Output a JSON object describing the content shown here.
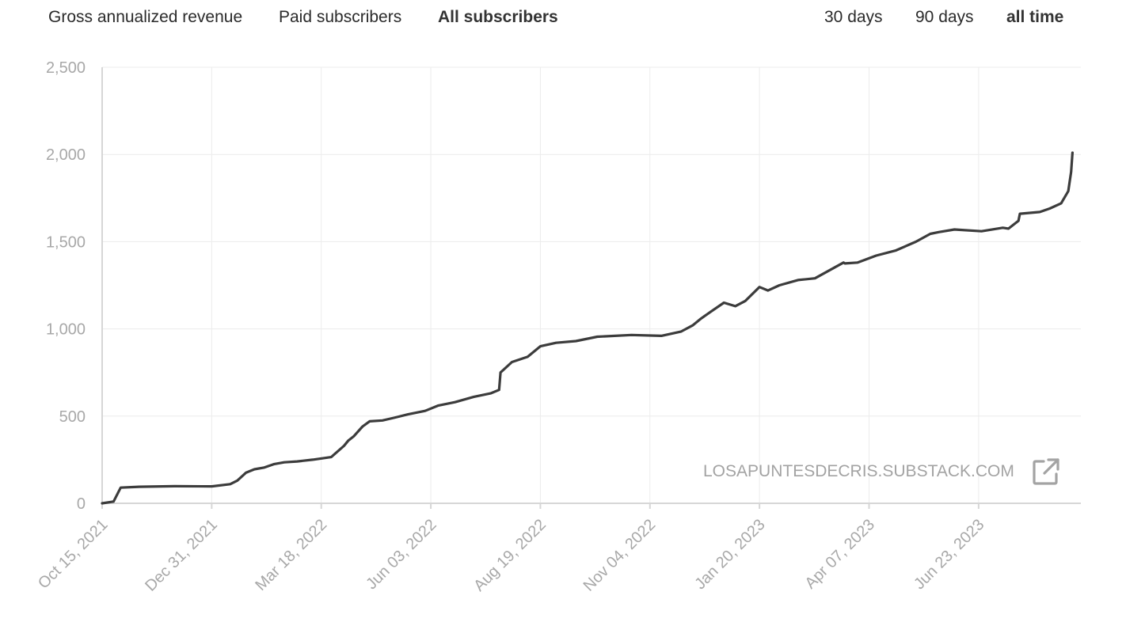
{
  "tabs": {
    "metric": [
      {
        "label": "Gross annualized revenue",
        "active": false
      },
      {
        "label": "Paid subscribers",
        "active": false
      },
      {
        "label": "All subscribers",
        "active": true
      }
    ],
    "range": [
      {
        "label": "30 days",
        "active": false
      },
      {
        "label": "90 days",
        "active": false
      },
      {
        "label": "all time",
        "active": true
      }
    ]
  },
  "watermark": {
    "text": "LOSAPUNTESDECRIS.SUBSTACK.COM",
    "icon": "external-link-icon"
  },
  "colors": {
    "line": "#3c3c3c",
    "grid": "#ececec",
    "tick_text": "#a8a8a8"
  },
  "chart_data": {
    "type": "line",
    "title": "",
    "xlabel": "",
    "ylabel": "",
    "ylim": [
      0,
      2500
    ],
    "y_ticks": [
      0,
      500,
      1000,
      1500,
      2000,
      2500
    ],
    "y_tick_labels": [
      "0",
      "500",
      "1,000",
      "1,500",
      "2,000",
      "2,500"
    ],
    "x_ticks": [
      "2021-10-15",
      "2021-12-31",
      "2022-03-18",
      "2022-06-03",
      "2022-08-19",
      "2022-11-04",
      "2023-01-20",
      "2023-04-07",
      "2023-06-23"
    ],
    "x_tick_labels": [
      "Oct 15, 2021",
      "Dec 31, 2021",
      "Mar 18, 2022",
      "Jun 03, 2022",
      "Aug 19, 2022",
      "Nov 04, 2022",
      "Jan 20, 2023",
      "Apr 07, 2023",
      "Jun 23, 2023"
    ],
    "grid": true,
    "series": [
      {
        "x": [
          "2021-10-15",
          "2021-10-23",
          "2021-10-28",
          "2021-11-10",
          "2021-12-05",
          "2021-12-31",
          "2022-01-13",
          "2022-01-18",
          "2022-01-24",
          "2022-01-30",
          "2022-02-06",
          "2022-02-13",
          "2022-02-20",
          "2022-03-01",
          "2022-03-12",
          "2022-03-25",
          "2022-04-03",
          "2022-04-06",
          "2022-04-10",
          "2022-04-16",
          "2022-04-21",
          "2022-04-30",
          "2022-05-08",
          "2022-05-18",
          "2022-05-30",
          "2022-06-08",
          "2022-06-20",
          "2022-07-03",
          "2022-07-15",
          "2022-07-21",
          "2022-07-22",
          "2022-07-30",
          "2022-08-10",
          "2022-08-19",
          "2022-08-30",
          "2022-09-13",
          "2022-09-28",
          "2022-10-22",
          "2022-11-12",
          "2022-11-26",
          "2022-12-04",
          "2022-12-10",
          "2022-12-17",
          "2022-12-26",
          "2023-01-03",
          "2023-01-10",
          "2023-01-20",
          "2023-01-26",
          "2023-02-03",
          "2023-02-16",
          "2023-02-28",
          "2023-03-20",
          "2023-03-21",
          "2023-03-30",
          "2023-04-12",
          "2023-04-26",
          "2023-05-10",
          "2023-05-20",
          "2023-05-26",
          "2023-06-06",
          "2023-06-25",
          "2023-07-10",
          "2023-07-14",
          "2023-07-21",
          "2023-07-22",
          "2023-08-05",
          "2023-08-12",
          "2023-08-20",
          "2023-08-25",
          "2023-08-27",
          "2023-08-28"
        ],
        "y": [
          0,
          10,
          90,
          95,
          98,
          97,
          110,
          130,
          175,
          195,
          205,
          225,
          235,
          240,
          250,
          265,
          330,
          360,
          385,
          440,
          470,
          475,
          490,
          510,
          530,
          560,
          580,
          610,
          630,
          650,
          750,
          810,
          840,
          900,
          920,
          930,
          955,
          965,
          960,
          985,
          1020,
          1060,
          1100,
          1150,
          1130,
          1160,
          1240,
          1220,
          1250,
          1280,
          1290,
          1380,
          1375,
          1380,
          1420,
          1450,
          1500,
          1545,
          1555,
          1570,
          1560,
          1580,
          1575,
          1620,
          1660,
          1670,
          1690,
          1720,
          1790,
          1900,
          2010
        ]
      }
    ]
  }
}
